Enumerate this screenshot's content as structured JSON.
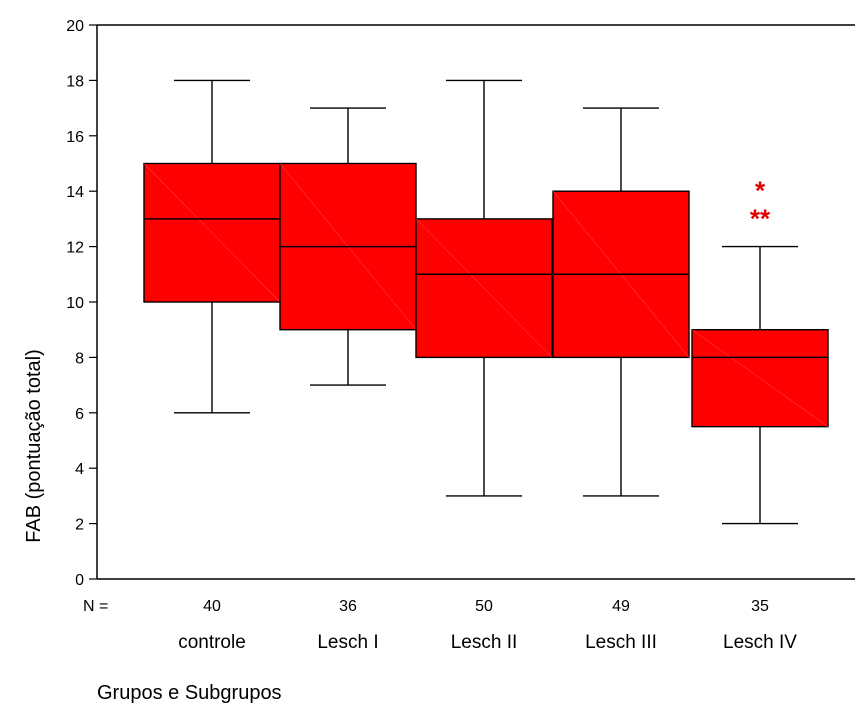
{
  "chart_data": {
    "type": "box",
    "title": "",
    "xlabel": "Grupos e Subgrupos",
    "ylabel": "FAB (pontuação total)",
    "ylim": [
      0,
      20
    ],
    "yticks": [
      0,
      2,
      4,
      6,
      8,
      10,
      12,
      14,
      16,
      18,
      20
    ],
    "grid": false,
    "box_color": "#ff0000",
    "annotation_color": "#e00000",
    "n_prefix": "N =",
    "categories": [
      "controle",
      "Lesch I",
      "Lesch II",
      "Lesch III",
      "Lesch IV"
    ],
    "n": [
      "40",
      "36",
      "50",
      "49",
      "35"
    ],
    "boxes": [
      {
        "min": 6,
        "q1": 10,
        "median": 13,
        "q3": 15,
        "max": 18
      },
      {
        "min": 7,
        "q1": 9,
        "median": 12,
        "q3": 15,
        "max": 17
      },
      {
        "min": 3,
        "q1": 8,
        "median": 11,
        "q3": 13,
        "max": 18
      },
      {
        "min": 3,
        "q1": 8,
        "median": 11,
        "q3": 14,
        "max": 17
      },
      {
        "min": 2,
        "q1": 5.5,
        "median": 8,
        "q3": 9,
        "max": 12
      }
    ],
    "annotations": [
      {
        "category": "Lesch IV",
        "text": "*",
        "y": 14.2
      },
      {
        "category": "Lesch IV",
        "text": "**",
        "y": 13.2
      }
    ]
  }
}
